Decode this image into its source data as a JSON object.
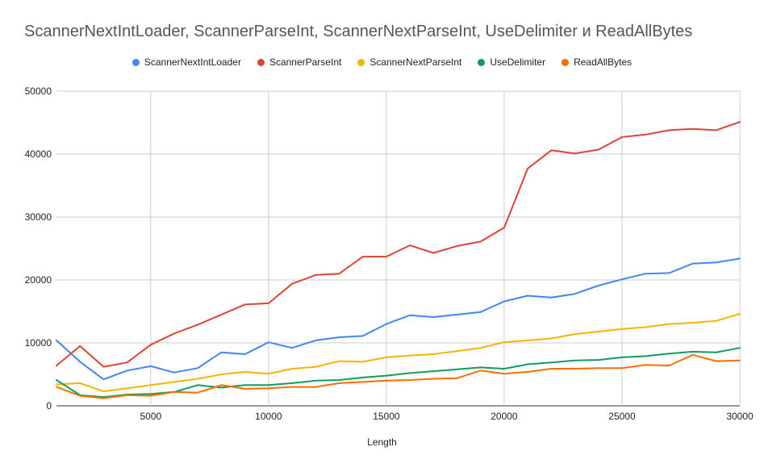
{
  "chart_data": {
    "type": "line",
    "title": "ScannerNextIntLoader, ScannerParseInt, ScannerNextParseInt, UseDelimiter и ReadAllBytes",
    "xlabel": "Length",
    "ylabel": "",
    "xlim": [
      1000,
      30000
    ],
    "ylim": [
      0,
      50000
    ],
    "x_ticks": [
      5000,
      10000,
      15000,
      20000,
      25000,
      30000
    ],
    "y_ticks": [
      0,
      10000,
      20000,
      30000,
      40000,
      50000
    ],
    "grid": true,
    "legend_position": "top",
    "x": [
      1000,
      2000,
      3000,
      4000,
      5000,
      6000,
      7000,
      8000,
      9000,
      10000,
      11000,
      12000,
      13000,
      14000,
      15000,
      16000,
      17000,
      18000,
      19000,
      20000,
      21000,
      22000,
      23000,
      24000,
      25000,
      26000,
      27000,
      28000,
      29000,
      30000
    ],
    "series": [
      {
        "name": "ScannerNextIntLoader",
        "color": "#4285f4",
        "values": [
          10400,
          7000,
          4200,
          5600,
          6300,
          5300,
          6000,
          8500,
          8200,
          10100,
          9200,
          10400,
          10900,
          11100,
          13000,
          14400,
          14100,
          14500,
          14900,
          16600,
          17500,
          17200,
          17800,
          19100,
          20100,
          21000,
          21100,
          22600,
          22800,
          23400
        ]
      },
      {
        "name": "ScannerParseInt",
        "color": "#db4437",
        "values": [
          6400,
          9500,
          6200,
          6900,
          9700,
          11500,
          12900,
          14500,
          16100,
          16300,
          19400,
          20800,
          21000,
          23700,
          23700,
          25500,
          24300,
          25400,
          26100,
          28300,
          37700,
          40600,
          40100,
          40700,
          42700,
          43100,
          43800,
          44000,
          43800,
          45100
        ]
      },
      {
        "name": "ScannerNextParseInt",
        "color": "#f4b400",
        "values": [
          3400,
          3600,
          2300,
          2800,
          3300,
          3800,
          4300,
          5000,
          5400,
          5100,
          5900,
          6200,
          7100,
          7000,
          7700,
          8000,
          8200,
          8700,
          9200,
          10100,
          10400,
          10700,
          11400,
          11800,
          12200,
          12500,
          13000,
          13200,
          13500,
          14600
        ]
      },
      {
        "name": "UseDelimiter",
        "color": "#0f9d58",
        "values": [
          4100,
          1700,
          1400,
          1800,
          1900,
          2200,
          3300,
          2900,
          3300,
          3300,
          3600,
          4000,
          4100,
          4500,
          4800,
          5200,
          5500,
          5800,
          6100,
          5900,
          6600,
          6900,
          7200,
          7300,
          7700,
          7900,
          8300,
          8600,
          8500,
          9200
        ]
      },
      {
        "name": "ReadAllBytes",
        "color": "#ff6d01",
        "values": [
          3000,
          1600,
          1200,
          1700,
          1600,
          2200,
          2100,
          3300,
          2700,
          2800,
          3000,
          3000,
          3600,
          3800,
          4000,
          4100,
          4300,
          4400,
          5600,
          5100,
          5400,
          5900,
          5900,
          6000,
          6000,
          6500,
          6400,
          8100,
          7100,
          7200
        ]
      }
    ]
  }
}
